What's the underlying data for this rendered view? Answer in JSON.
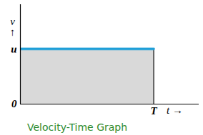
{
  "chart_data": {
    "type": "area",
    "title": "Velocity-Time Graph",
    "x_label": "t →",
    "y_label": "v\n↑",
    "x": [
      0,
      10
    ],
    "values": [
      10,
      10
    ],
    "color": "#1f9fd8",
    "xlim": [
      0,
      13.4
    ],
    "xticks": [
      {
        "value": 10,
        "label": "T"
      }
    ],
    "ylim": [
      0,
      18
    ],
    "yticks": [
      0,
      {
        "value": 10,
        "label": "u"
      }
    ],
    "grid": false
  }
}
